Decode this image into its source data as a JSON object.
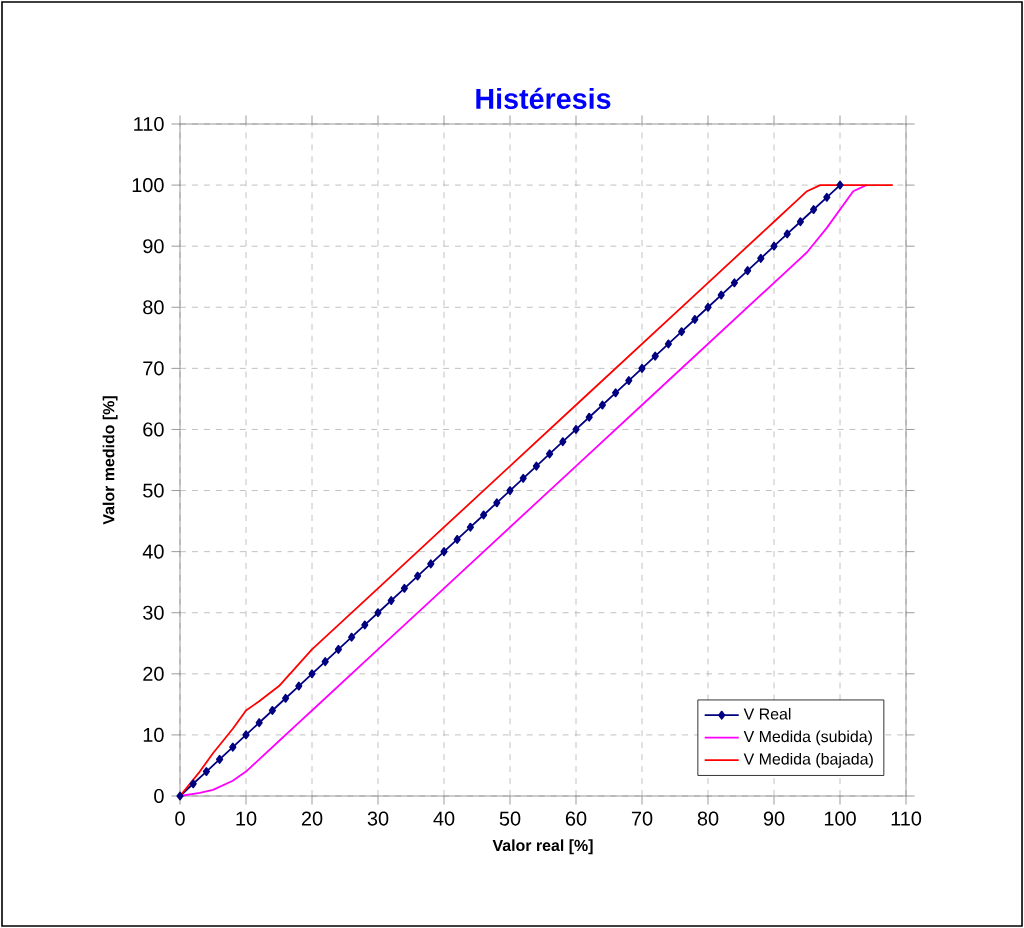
{
  "chart_data": {
    "type": "line",
    "title": "Histéresis",
    "xlabel": "Valor real [%]",
    "ylabel": "Valor medido [%]",
    "xlim": [
      0,
      110
    ],
    "ylim": [
      0,
      110
    ],
    "xticks": [
      0,
      10,
      20,
      30,
      40,
      50,
      60,
      70,
      80,
      90,
      100,
      110
    ],
    "yticks": [
      0,
      10,
      20,
      30,
      40,
      50,
      60,
      70,
      80,
      90,
      100,
      110
    ],
    "grid": true,
    "legend": "bottom right",
    "series": [
      {
        "name": "V Real",
        "color": "#000080",
        "marker": "diamond",
        "x": [
          0,
          2,
          4,
          6,
          8,
          10,
          12,
          14,
          16,
          18,
          20,
          22,
          24,
          26,
          28,
          30,
          32,
          34,
          36,
          38,
          40,
          42,
          44,
          46,
          48,
          50,
          52,
          54,
          56,
          58,
          60,
          62,
          64,
          66,
          68,
          70,
          72,
          74,
          76,
          78,
          80,
          82,
          84,
          86,
          88,
          90,
          92,
          94,
          96,
          98,
          100
        ],
        "values": [
          0,
          2,
          4,
          6,
          8,
          10,
          12,
          14,
          16,
          18,
          20,
          22,
          24,
          26,
          28,
          30,
          32,
          34,
          36,
          38,
          40,
          42,
          44,
          46,
          48,
          50,
          52,
          54,
          56,
          58,
          60,
          62,
          64,
          66,
          68,
          70,
          72,
          74,
          76,
          78,
          80,
          82,
          84,
          86,
          88,
          90,
          92,
          94,
          96,
          98,
          100
        ]
      },
      {
        "name": "V Medida (subida)",
        "color": "#ff00ff",
        "marker": "none",
        "x": [
          0,
          3,
          5,
          8,
          10,
          12,
          15,
          18,
          20,
          30,
          40,
          50,
          60,
          70,
          80,
          90,
          95,
          98,
          100,
          102,
          104
        ],
        "values": [
          0,
          0.5,
          1,
          2.5,
          4,
          6,
          9,
          12,
          14,
          24,
          34,
          44,
          54,
          64,
          74,
          84,
          89,
          93,
          96,
          99,
          100
        ]
      },
      {
        "name": "V Medida (bajada)",
        "color": "#ff0000",
        "marker": "none",
        "x": [
          0,
          3,
          5,
          8,
          10,
          12,
          15,
          20,
          30,
          40,
          50,
          60,
          70,
          80,
          90,
          93,
          95,
          97,
          100,
          104,
          108
        ],
        "values": [
          0,
          4,
          7,
          11,
          14,
          15.5,
          18,
          24,
          34,
          44,
          54,
          64,
          74,
          84,
          94,
          97,
          99,
          100,
          100,
          100,
          100
        ]
      }
    ]
  }
}
